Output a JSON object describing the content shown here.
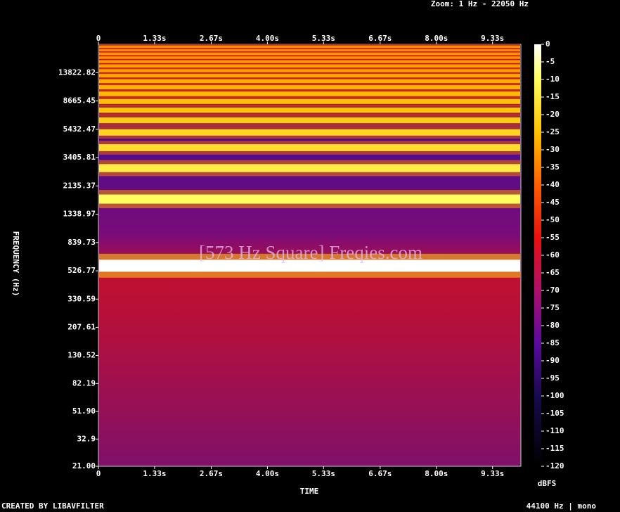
{
  "zoom_label": "Zoom: 1 Hz - 22050 Hz",
  "footer_left": "CREATED BY LIBAVFILTER",
  "footer_right": "44100 Hz | mono",
  "chart_data": {
    "type": "spectrogram",
    "watermark": "[573 Hz Square] Freqies.com",
    "x_label": "TIME",
    "y_label": "FREQUENCY (Hz)",
    "colorbar_label": "dBFS",
    "xlim": [
      0,
      10
    ],
    "xticks": [
      0,
      {
        "value": 1.33,
        "label": "1.33s"
      },
      {
        "value": 2.67,
        "label": "2.67s"
      },
      {
        "value": 4.0,
        "label": "4.00s"
      },
      {
        "value": 5.33,
        "label": "5.33s"
      },
      {
        "value": 6.67,
        "label": "6.67s"
      },
      {
        "value": 8.0,
        "label": "8.00s"
      },
      {
        "value": 9.33,
        "label": "9.33s"
      }
    ],
    "ylim": [
      21,
      22050
    ],
    "y_scale": "log",
    "yticks": [
      {
        "value": 21,
        "label": "21.00"
      },
      32.9,
      {
        "value": 51.9,
        "label": "51.90"
      },
      82.19,
      130.52,
      207.61,
      330.59,
      526.77,
      839.73,
      1338.97,
      2135.37,
      3405.81,
      5432.47,
      8665.45,
      13822.82
    ],
    "clim": [
      -120,
      0
    ],
    "cticks": [
      0,
      -5,
      -10,
      -15,
      -20,
      -25,
      -30,
      -35,
      -40,
      -45,
      -50,
      -55,
      -60,
      -65,
      -70,
      -75,
      -80,
      -85,
      -90,
      -95,
      -100,
      -105,
      -110,
      -115,
      -120
    ],
    "harmonics": {
      "frequencies": [
        573,
        1719,
        2865,
        4011,
        5157,
        6303,
        7449,
        8595,
        9741,
        10887,
        12033,
        13179,
        14325,
        15471,
        16617,
        17763,
        18909,
        20055,
        21201
      ],
      "levels": [
        0,
        -10,
        -14,
        -18,
        -20,
        -22,
        -24,
        -25,
        -26,
        -27,
        -28,
        -29,
        -30,
        -30,
        -31,
        -32,
        -32,
        -33,
        -33
      ]
    }
  }
}
